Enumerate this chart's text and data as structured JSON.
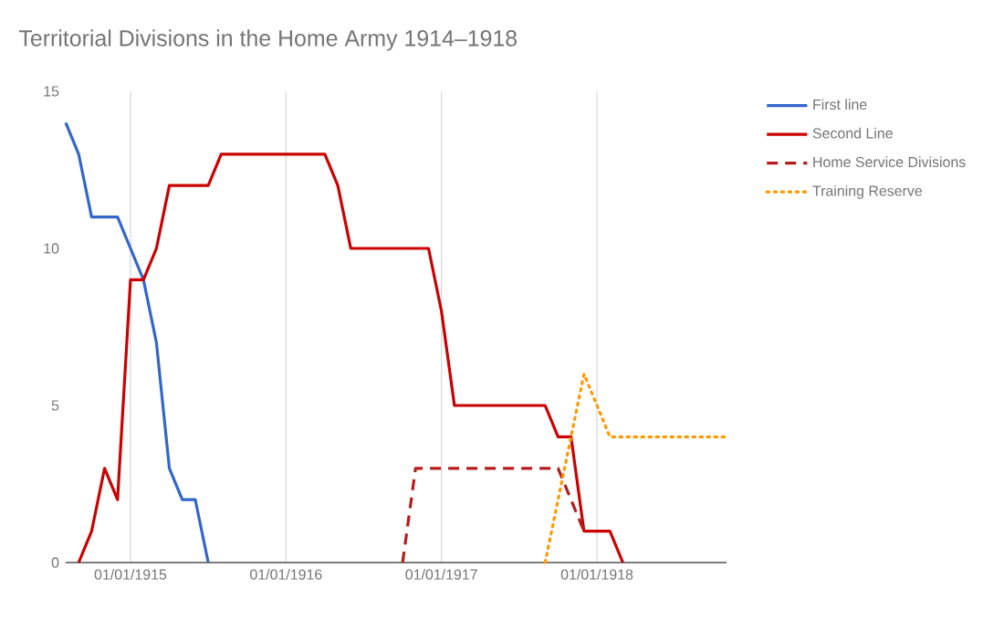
{
  "chart_data": {
    "type": "line",
    "title": "Territorial Divisions in the Home Army 1914–1918",
    "xlim": [
      "1914-08",
      "1918-11"
    ],
    "xticks": [
      {
        "value": "1915-01-01",
        "label": "01/01/1915"
      },
      {
        "value": "1916-01-01",
        "label": "01/01/1916"
      },
      {
        "value": "1917-01-01",
        "label": "01/01/1917"
      },
      {
        "value": "1918-01-01",
        "label": "01/01/1918"
      }
    ],
    "ylim": [
      0,
      15
    ],
    "yticks": [
      0,
      5,
      10,
      15
    ],
    "grid": true,
    "legend": "right",
    "series": [
      {
        "name": "First line",
        "color": "#3366cc",
        "line_style": "solid",
        "x": [
          "1914-08",
          "1914-09",
          "1914-10",
          "1914-12",
          "1915-01",
          "1915-02",
          "1915-03",
          "1915-04",
          "1915-05",
          "1915-06",
          "1915-07"
        ],
        "values": [
          14,
          13,
          11,
          11,
          10,
          9,
          7,
          3,
          2,
          2,
          0
        ]
      },
      {
        "name": "Second Line",
        "color": "#cc0000",
        "line_style": "solid",
        "x": [
          "1914-09",
          "1914-10",
          "1914-11",
          "1914-12",
          "1915-01",
          "1915-02",
          "1915-03",
          "1915-04",
          "1915-07",
          "1915-08",
          "1916-04",
          "1916-05",
          "1916-06",
          "1916-12",
          "1917-01",
          "1917-02",
          "1917-09",
          "1917-10",
          "1917-11",
          "1917-12",
          "1918-02",
          "1918-03"
        ],
        "values": [
          0,
          1,
          3,
          2,
          9,
          9,
          10,
          12,
          12,
          13,
          13,
          12,
          10,
          10,
          8,
          5,
          5,
          4,
          4,
          1,
          1,
          0
        ]
      },
      {
        "name": "Home Service Divisions",
        "color": "#b71c1c",
        "line_style": "dashed",
        "x": [
          "1916-10",
          "1916-11",
          "1917-10",
          "1917-12"
        ],
        "values": [
          0,
          3,
          3,
          1
        ]
      },
      {
        "name": "Training Reserve",
        "color": "#ff9900",
        "line_style": "dotted",
        "x": [
          "1917-09",
          "1917-12",
          "1918-02",
          "1918-11"
        ],
        "values": [
          0,
          6,
          4,
          4
        ]
      }
    ]
  }
}
